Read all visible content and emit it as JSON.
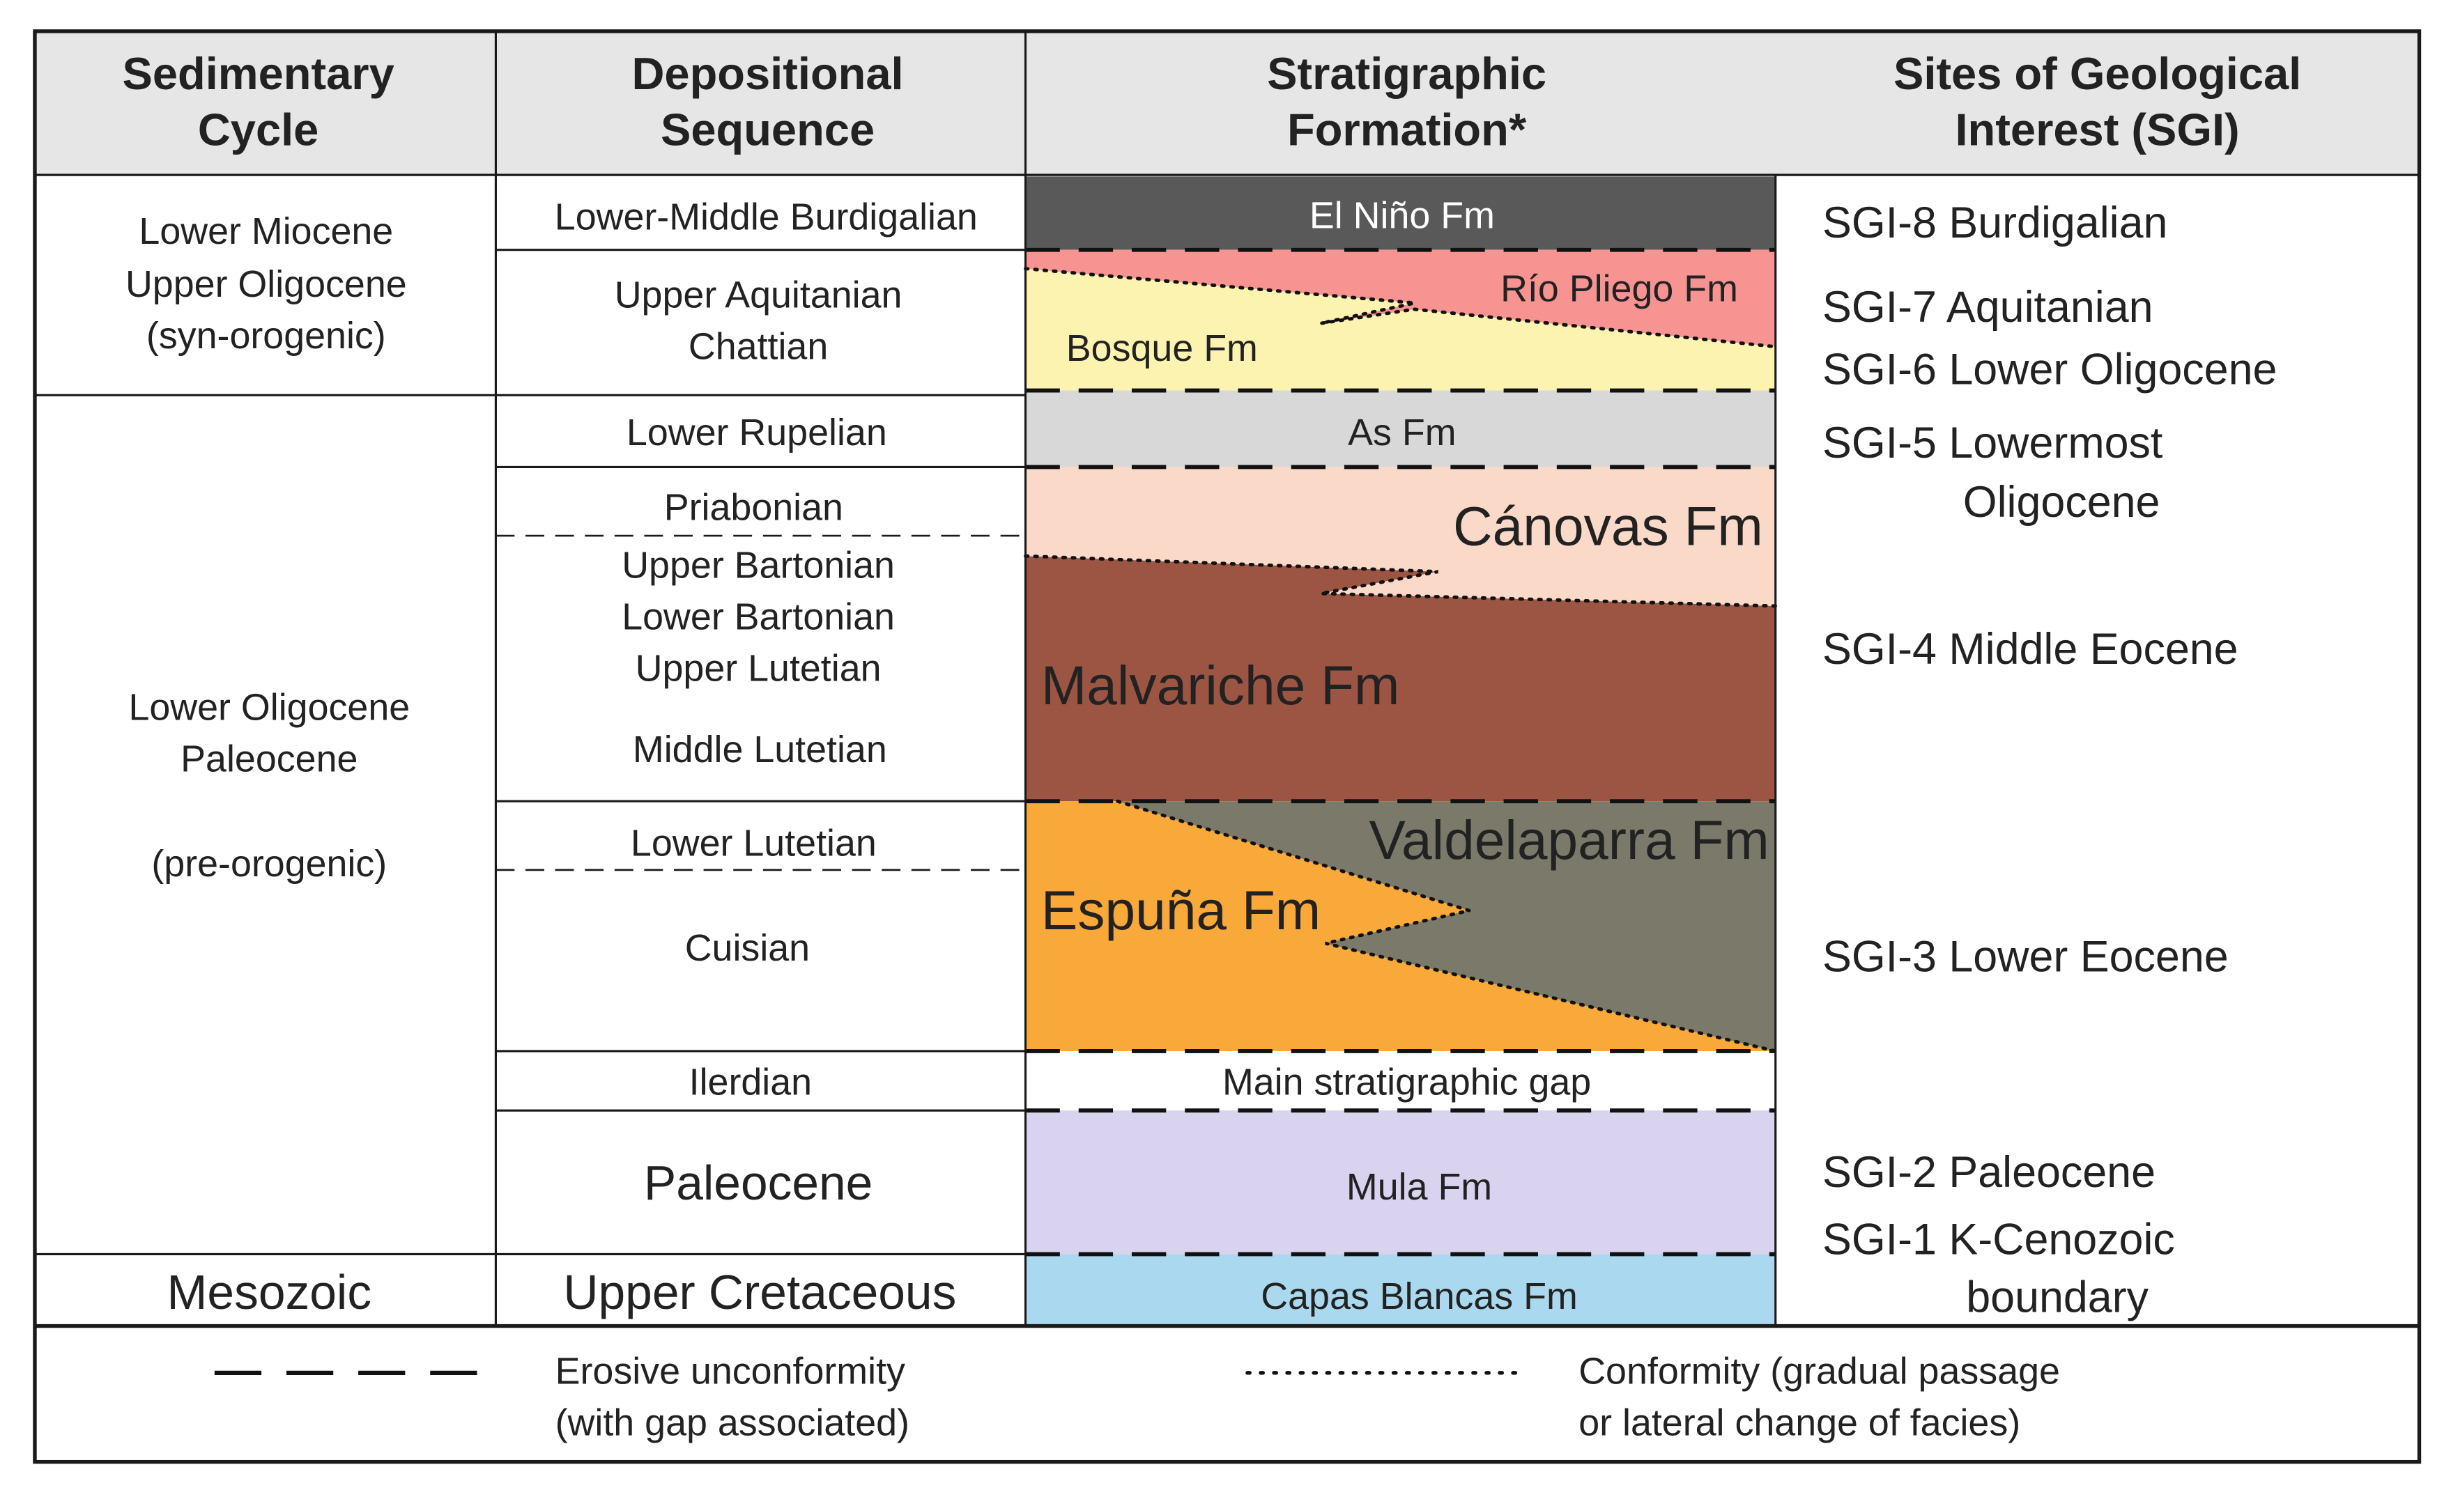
{
  "headers": {
    "sedimentary_cycle": [
      "Sedimentary",
      "Cycle"
    ],
    "depositional_sequence": [
      "Depositional",
      "Sequence"
    ],
    "stratigraphic_formation": [
      "Stratigraphic",
      "Formation*"
    ],
    "sgi": [
      "Sites of Geological",
      "Interest (SGI)"
    ]
  },
  "cycles": [
    {
      "lines": [
        "Lower Miocene",
        "Upper Oligocene",
        "(syn-orogenic)"
      ]
    },
    {
      "lines": [
        "Lower Oligocene",
        "Paleocene",
        "",
        "(pre-orogenic)"
      ]
    },
    {
      "lines": [
        "Mesozoic"
      ]
    }
  ],
  "sequences": {
    "burdigalian": "Lower-Middle Burdigalian",
    "aquitanian": [
      "Upper Aquitanian",
      "Chattian"
    ],
    "rupelian": "Lower Rupelian",
    "priabonian": "Priabonian",
    "bartonian_lutetian": [
      "Upper Bartonian",
      "Lower Bartonian",
      "Upper Lutetian"
    ],
    "middle_lutetian": "Middle Lutetian",
    "lower_lutetian": "Lower Lutetian",
    "cuisian": "Cuisian",
    "ilerdian": "Ilerdian",
    "paleocene": "Paleocene",
    "upper_cretaceous": "Upper Cretaceous"
  },
  "formations": {
    "el_nino": {
      "label": "El Niño Fm",
      "color": "#595959"
    },
    "rio_pliego": {
      "label": "Río Pliego Fm",
      "color": "#f79391"
    },
    "bosque": {
      "label": "Bosque Fm",
      "color": "#fdf3b0"
    },
    "as": {
      "label": "As Fm",
      "color": "#d8d8d8"
    },
    "canovas": {
      "label": "Cánovas Fm",
      "color": "#fbd9c8"
    },
    "malvariche": {
      "label": "Malvariche Fm",
      "color": "#9c5543"
    },
    "valdelaparra": {
      "label": "Valdelaparra Fm",
      "color": "#7b7a6a"
    },
    "espuna": {
      "label": "Espuña Fm",
      "color": "#f9a83a"
    },
    "gap": {
      "label": "Main stratigraphic gap",
      "color": "#ffffff"
    },
    "mula": {
      "label": "Mula Fm",
      "color": "#d9d3ef"
    },
    "capas_blancas": {
      "label": "Capas Blancas Fm",
      "color": "#aad8ef"
    }
  },
  "sgi": {
    "sgi8": "SGI-8 Burdigalian",
    "sgi7": "SGI-7 Aquitanian",
    "sgi6": "SGI-6 Lower Oligocene",
    "sgi5": [
      "SGI-5 Lowermost",
      "Oligocene"
    ],
    "sgi4": "SGI-4 Middle Eocene",
    "sgi3": "SGI-3 Lower Eocene",
    "sgi2": "SGI-2 Paleocene",
    "sgi1": [
      "SGI-1 K-Cenozoic",
      "boundary"
    ]
  },
  "legend": {
    "erosive": [
      "Erosive unconformity",
      "(with gap associated)"
    ],
    "conformity": [
      "Conformity (gradual passage",
      "or lateral change of facies)"
    ]
  },
  "colors": {
    "header_bg": "#e6e6e6",
    "border": "#1a1a1a"
  }
}
